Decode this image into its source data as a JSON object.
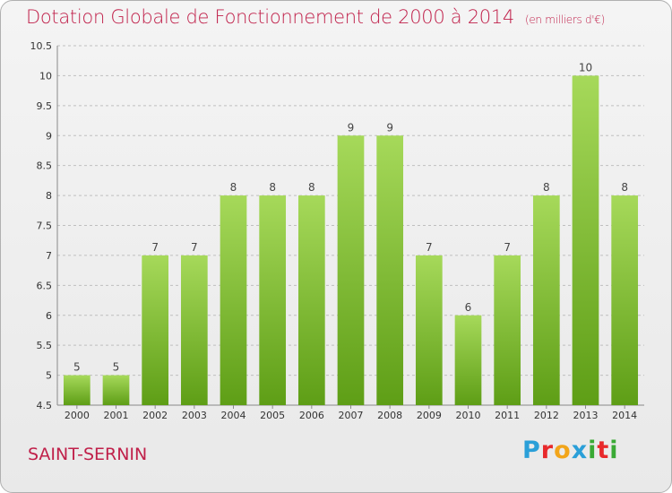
{
  "header": {
    "title": "Dotation Globale de Fonctionnement de 2000 à 2014",
    "subtitle": "(en milliers d'€)"
  },
  "footer": {
    "commune": "SAINT-SERNIN",
    "logo_text": "Proxiti",
    "logo_colors": [
      "#2a9fd8",
      "#e8292b",
      "#f2a51a",
      "#2a9fd8",
      "#3aaa35",
      "#e8292b",
      "#3aaa35"
    ]
  },
  "colors": {
    "title": "#c0204a",
    "bar_top": "#a6d95a",
    "bar_bottom": "#5e9e16",
    "grid": "#bfbfbf"
  },
  "chart_data": {
    "type": "bar",
    "categories": [
      "2000",
      "2001",
      "2002",
      "2003",
      "2004",
      "2005",
      "2006",
      "2007",
      "2008",
      "2009",
      "2010",
      "2011",
      "2012",
      "2013",
      "2014"
    ],
    "values": [
      5,
      5,
      7,
      7,
      8,
      8,
      8,
      9,
      9,
      7,
      6,
      7,
      8,
      10,
      8
    ],
    "data_labels": [
      "5",
      "5",
      "7",
      "7",
      "8",
      "8",
      "8",
      "9",
      "9",
      "7",
      "6",
      "7",
      "8",
      "10",
      "8"
    ],
    "title": "Dotation Globale de Fonctionnement de 2000 à 2014",
    "subtitle": "(en milliers d'€)",
    "xlabel": "",
    "ylabel": "",
    "ylim": [
      4.5,
      10.5
    ],
    "yticks": [
      4.5,
      5,
      5.5,
      6,
      6.5,
      7,
      7.5,
      8,
      8.5,
      9,
      9.5,
      10,
      10.5
    ],
    "ytick_labels": [
      "4.5",
      "5",
      "5.5",
      "6",
      "6.5",
      "7",
      "7.5",
      "8",
      "8.5",
      "9",
      "9.5",
      "10",
      "10.5"
    ],
    "grid": true,
    "legend": "none"
  }
}
